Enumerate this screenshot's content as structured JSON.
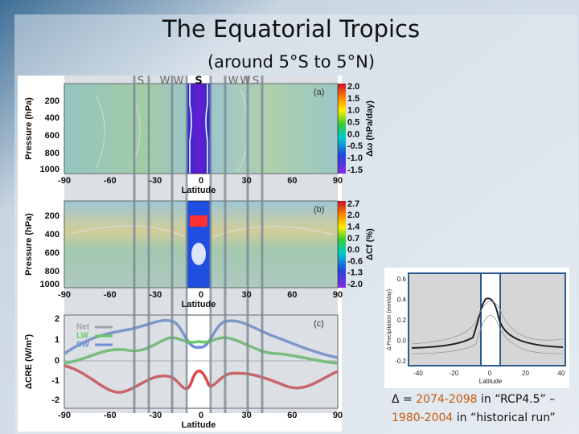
{
  "header": {
    "title": "The Equatorial Tropics",
    "subtitle": "(around 5°S to 5°N)"
  },
  "regime_letters": [
    "S",
    "W",
    "W",
    "S",
    "W",
    "W",
    "S"
  ],
  "panels": [
    {
      "label": "(a)",
      "y_axis_label": "Pressure (hPa)",
      "yticks": [
        "200",
        "400",
        "600",
        "800",
        "1000"
      ],
      "xticks": [
        "-90",
        "-60",
        "-30",
        "0",
        "30",
        "60",
        "90"
      ],
      "x_axis_label": "Latitude",
      "colorbar_label": "Δω (hPa/day)",
      "colorbar_ticks": [
        "2.0",
        "1.5",
        "1.0",
        "0.5",
        "0.0",
        "-0.5",
        "-1.0",
        "-1.5"
      ]
    },
    {
      "label": "(b)",
      "y_axis_label": "Pressure (hPa)",
      "yticks": [
        "200",
        "400",
        "600",
        "800",
        "1000"
      ],
      "xticks": [
        "-90",
        "-60",
        "-30",
        "0",
        "30",
        "60",
        "90"
      ],
      "x_axis_label": "Latitude",
      "colorbar_label": "ΔCf (%)",
      "colorbar_ticks": [
        "2.7",
        "2.0",
        "1.4",
        "0.7",
        "0.0",
        "-0.6",
        "-1.3",
        "-2.0"
      ]
    },
    {
      "label": "(c)",
      "y_axis_label": "ΔCRE (W/m²)",
      "yticks": [
        "2",
        "1",
        "0",
        "-1",
        "-2"
      ],
      "xticks": [
        "-90",
        "-60",
        "-30",
        "0",
        "30",
        "60",
        "90"
      ],
      "x_axis_label": "Latitude",
      "legend": [
        "Net",
        "LW",
        "SW"
      ]
    }
  ],
  "inset": {
    "y_axis_label": "Δ Precipitation (mm/day)",
    "yticks": [
      "0.6",
      "0.4",
      "0.2",
      "0.0",
      "-0.2"
    ],
    "xticks": [
      "-40",
      "-20",
      "0",
      "20",
      "40"
    ],
    "x_axis_label": "Latitude"
  },
  "caption": {
    "delta": "Δ = ",
    "period1": "2074-2098",
    "mid1": " in “RCP4.5” –",
    "period2": "1980-2004",
    "mid2": " in “historical run”"
  }
}
